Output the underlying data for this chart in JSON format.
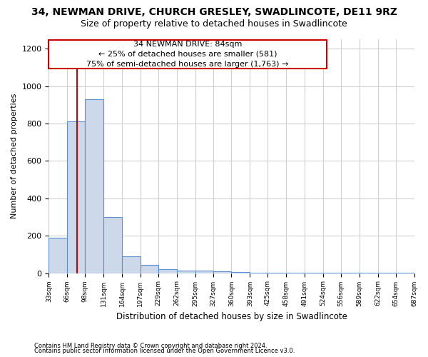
{
  "title1": "34, NEWMAN DRIVE, CHURCH GRESLEY, SWADLINCOTE, DE11 9RZ",
  "title2": "Size of property relative to detached houses in Swadlincote",
  "xlabel": "Distribution of detached houses by size in Swadlincote",
  "ylabel": "Number of detached properties",
  "footer1": "Contains HM Land Registry data © Crown copyright and database right 2024.",
  "footer2": "Contains public sector information licensed under the Open Government Licence v3.0.",
  "bin_edges": [
    33,
    66,
    98,
    131,
    164,
    197,
    229,
    262,
    295,
    327,
    360,
    393,
    425,
    458,
    491,
    524,
    556,
    589,
    622,
    654,
    687
  ],
  "bar_heights": [
    190,
    810,
    930,
    300,
    90,
    45,
    20,
    15,
    15,
    8,
    5,
    3,
    2,
    2,
    1,
    1,
    1,
    1,
    1,
    1
  ],
  "bar_color": "#cdd8ea",
  "bar_edge_color": "#5b8fcf",
  "property_size": 84,
  "red_line_color": "#cc0000",
  "annotation_line1": "34 NEWMAN DRIVE: 84sqm",
  "annotation_line2": "← 25% of detached houses are smaller (581)",
  "annotation_line3": "75% of semi-detached houses are larger (1,763) →",
  "annotation_box_color": "#cc0000",
  "ylim": [
    0,
    1250
  ],
  "yticks": [
    0,
    200,
    400,
    600,
    800,
    1000,
    1200
  ],
  "grid_color": "#d0d0d0",
  "bg_color": "#ffffff",
  "title1_fontsize": 10,
  "title2_fontsize": 9,
  "annotation_fontsize": 8
}
